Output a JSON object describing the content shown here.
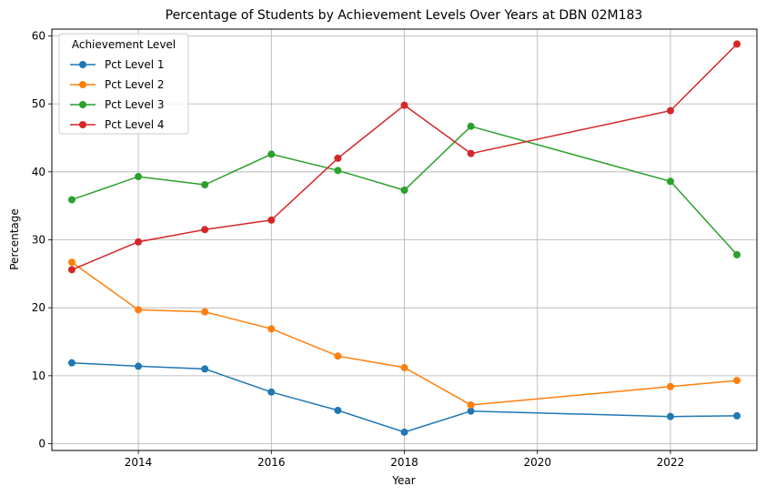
{
  "chart_data": {
    "type": "line",
    "title": "Percentage of Students by Achievement Levels Over Years at DBN 02M183",
    "xlabel": "Year",
    "ylabel": "Percentage",
    "xlim": [
      2012.7,
      2023.3
    ],
    "ylim": [
      -1,
      61
    ],
    "xticks": [
      2014,
      2016,
      2018,
      2020,
      2022
    ],
    "yticks": [
      0,
      10,
      20,
      30,
      40,
      50,
      60
    ],
    "grid": true,
    "legend": {
      "title": "Achievement Level",
      "position": "upper-left"
    },
    "x": [
      2013,
      2014,
      2015,
      2016,
      2017,
      2018,
      2019,
      2022,
      2023
    ],
    "series": [
      {
        "name": "Pct Level 1",
        "color": "#1f77b4",
        "values": [
          11.9,
          11.4,
          11.0,
          7.6,
          4.9,
          1.7,
          4.8,
          4.0,
          4.1
        ]
      },
      {
        "name": "Pct Level 2",
        "color": "#ff7f0e",
        "values": [
          26.7,
          19.7,
          19.4,
          16.9,
          12.9,
          11.2,
          5.7,
          8.4,
          9.3
        ]
      },
      {
        "name": "Pct Level 3",
        "color": "#2ca02c",
        "values": [
          35.9,
          39.3,
          38.1,
          42.6,
          40.2,
          37.3,
          46.7,
          38.6,
          27.8
        ]
      },
      {
        "name": "Pct Level 4",
        "color": "#d62728",
        "values": [
          25.6,
          29.7,
          31.5,
          32.9,
          42.0,
          49.8,
          42.7,
          49.0,
          58.8
        ]
      }
    ]
  }
}
